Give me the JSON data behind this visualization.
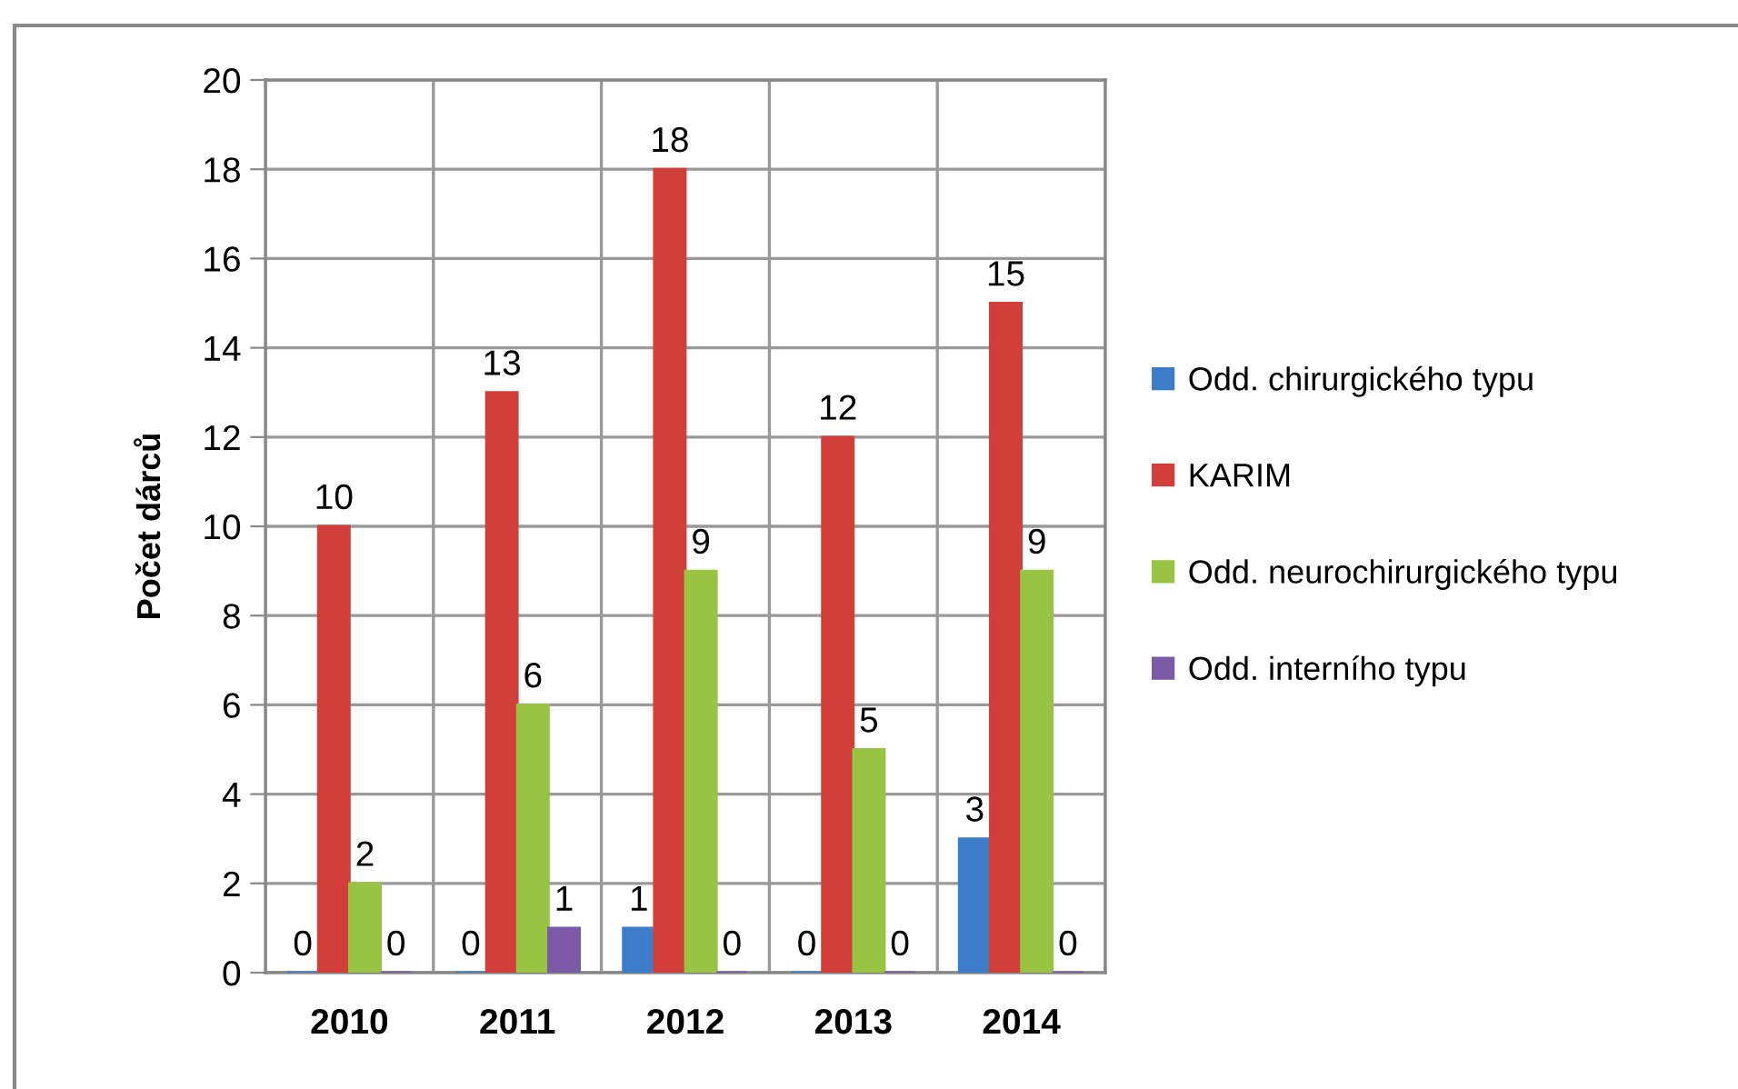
{
  "chart_data": {
    "type": "bar",
    "categories": [
      "2010",
      "2011",
      "2012",
      "2013",
      "2014"
    ],
    "ylabel": "Počet dárců",
    "ylim": [
      0,
      20
    ],
    "yticks": [
      0,
      2,
      4,
      6,
      8,
      10,
      12,
      14,
      16,
      18,
      20
    ],
    "grid": true,
    "legend": "right",
    "data_labels": true,
    "series": [
      {
        "name": "Odd. chirurgického typu",
        "color": "#3d7cc9",
        "values": [
          0,
          0,
          1,
          0,
          3
        ]
      },
      {
        "name": "KARIM",
        "color": "#d23f3a",
        "values": [
          10,
          13,
          18,
          12,
          15
        ]
      },
      {
        "name": "Odd. neurochirurgického typu",
        "color": "#98c343",
        "values": [
          2,
          6,
          9,
          5,
          9
        ]
      },
      {
        "name": "Odd. interního typu",
        "color": "#7d5aa7",
        "values": [
          0,
          1,
          0,
          0,
          0
        ]
      }
    ]
  }
}
